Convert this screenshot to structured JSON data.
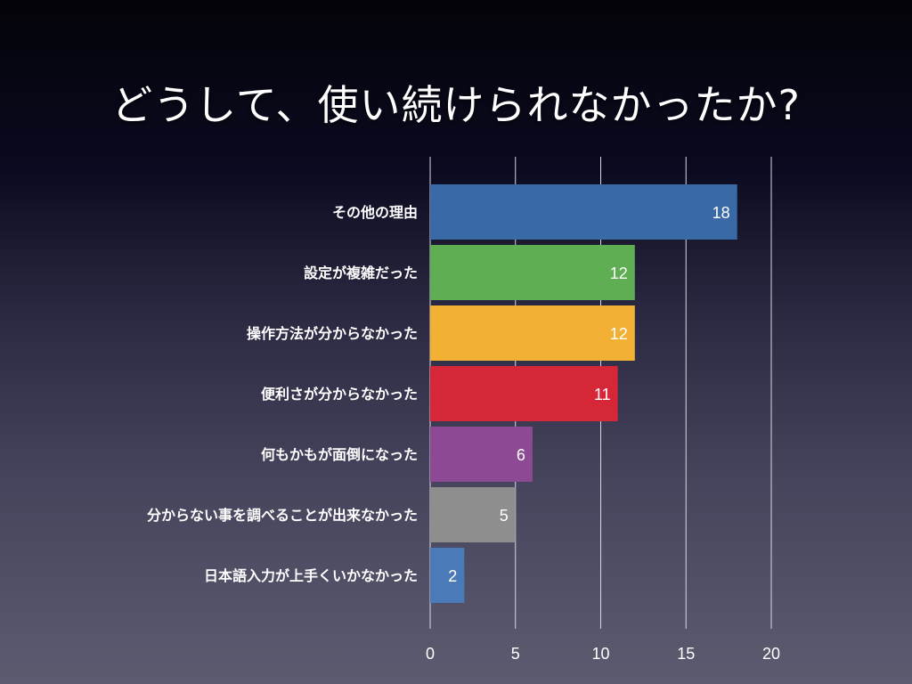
{
  "slide": {
    "title": "どうして、使い続けられなかったか?"
  },
  "chart_data": {
    "type": "bar",
    "orientation": "horizontal",
    "categories": [
      "その他の理由",
      "設定が複雑だった",
      "操作方法が分からなかった",
      "便利さが分からなかった",
      "何もかもが面倒になった",
      "分からない事を調べることが出来なかった",
      "日本語入力が上手くいかなかった"
    ],
    "values": [
      18,
      12,
      12,
      11,
      6,
      5,
      2
    ],
    "colors": [
      "#3a6aa6",
      "#5fae53",
      "#f2b134",
      "#d62738",
      "#8b4a93",
      "#8e8e8e",
      "#4a7bb8"
    ],
    "xlim": [
      0,
      20
    ],
    "xticks": [
      "0",
      "5",
      "10",
      "15",
      "20"
    ],
    "grid": true,
    "legend": false
  }
}
